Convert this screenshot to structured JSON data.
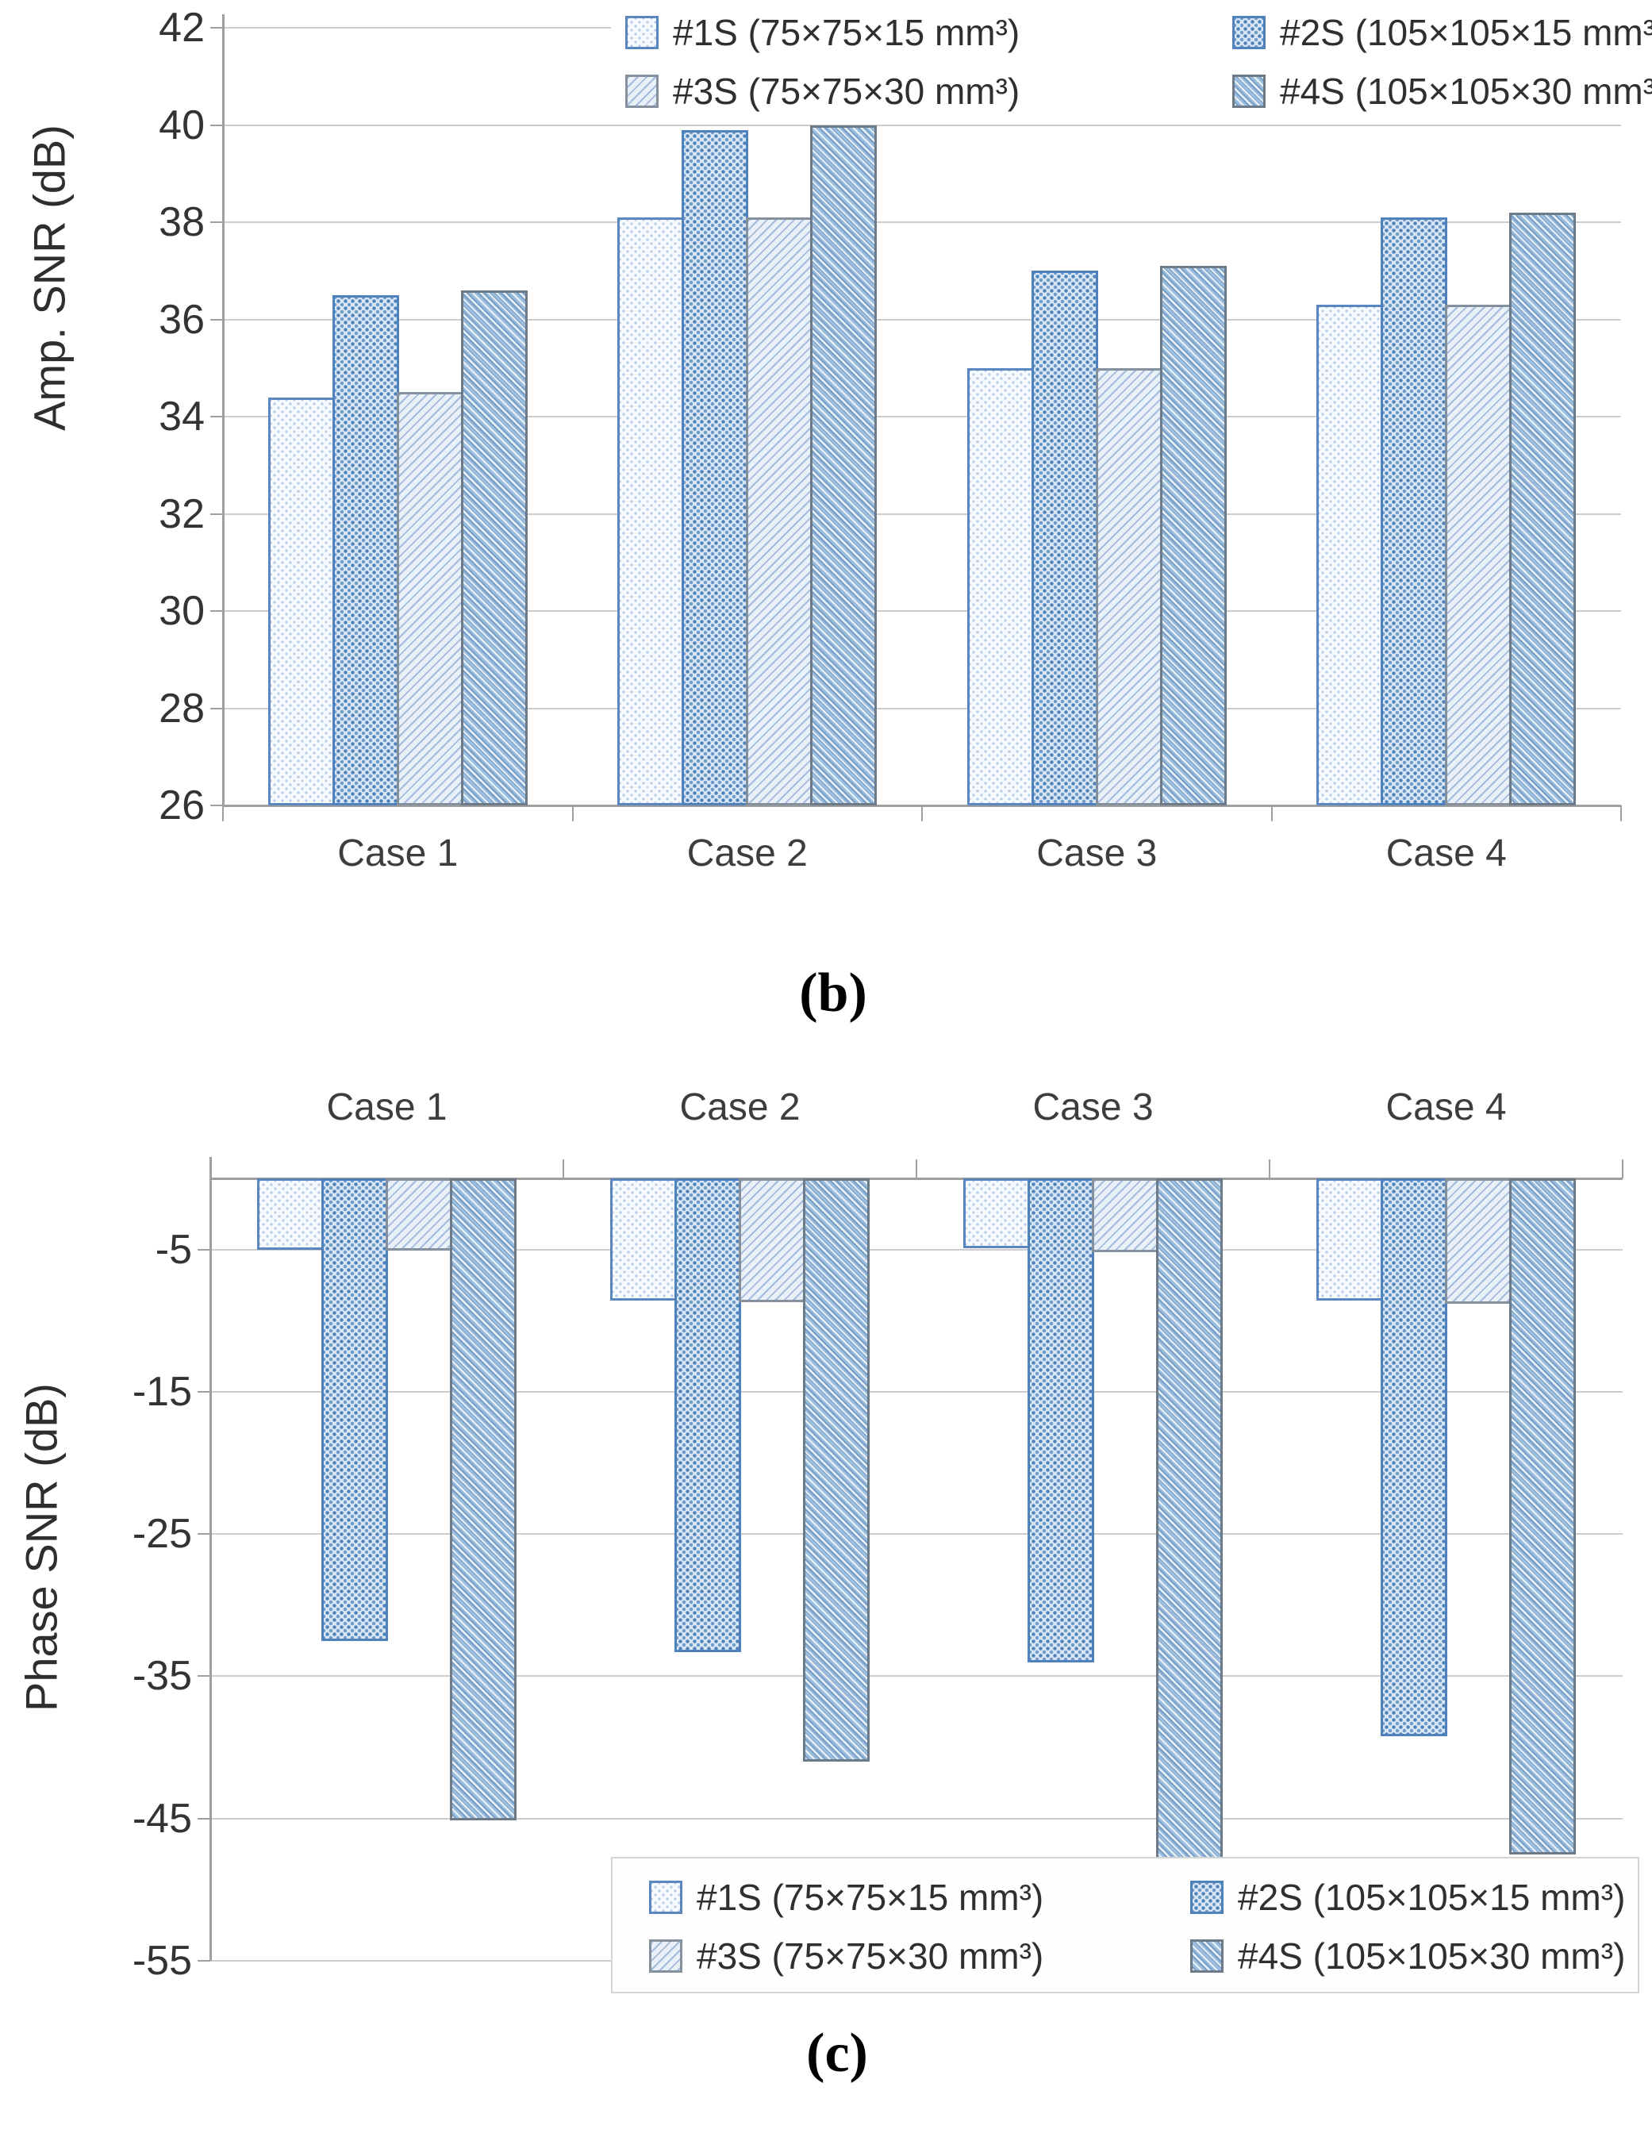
{
  "figure": {
    "panel_b_label": "(b)",
    "panel_c_label": "(c)"
  },
  "legend": {
    "items": [
      {
        "id": "s1",
        "label": "#1S (75×75×15 mm³)",
        "pattern": "dots-light"
      },
      {
        "id": "s2",
        "label": "#2S (105×105×15 mm³)",
        "pattern": "dots-dense"
      },
      {
        "id": "s3",
        "label": "#3S (75×75×30 mm³)",
        "pattern": "hatch-light"
      },
      {
        "id": "s4",
        "label": "#4S (105×105×30 mm³)",
        "pattern": "hatch-dense"
      }
    ]
  },
  "colors": {
    "accent_blue": "#4f81bd",
    "grid": "#cdcdcd",
    "axis": "#9f9f9f",
    "text": "#333333"
  },
  "chart_data": [
    {
      "id": "b",
      "type": "bar",
      "title": "",
      "xlabel": "",
      "ylabel": "Amp. SNR (dB)",
      "categories": [
        "Case 1",
        "Case 2",
        "Case 3",
        "Case 4"
      ],
      "series": [
        {
          "name": "#1S (75×75×15 mm³)",
          "values": [
            34.4,
            38.1,
            35.0,
            36.3
          ]
        },
        {
          "name": "#2S (105×105×15 mm³)",
          "values": [
            36.5,
            39.9,
            37.0,
            38.1
          ]
        },
        {
          "name": "#3S (75×75×30 mm³)",
          "values": [
            34.5,
            38.1,
            35.0,
            36.3
          ]
        },
        {
          "name": "#4S (105×105×30 mm³)",
          "values": [
            36.6,
            40.0,
            37.1,
            38.2
          ]
        }
      ],
      "ylim": [
        26,
        42
      ],
      "yticks": [
        26,
        28,
        30,
        32,
        34,
        36,
        38,
        40,
        42
      ],
      "grid": true,
      "legend_position": "top-right"
    },
    {
      "id": "c",
      "type": "bar",
      "title": "",
      "xlabel": "",
      "ylabel": "Phase SNR (dB)",
      "categories": [
        "Case 1",
        "Case 2",
        "Case 3",
        "Case 4"
      ],
      "series": [
        {
          "name": "#1S (75×75×15 mm³)",
          "values": [
            -5.0,
            -8.6,
            -4.9,
            -8.6
          ]
        },
        {
          "name": "#2S (105×105×15 mm³)",
          "values": [
            -32.5,
            -33.3,
            -34.0,
            -39.2
          ]
        },
        {
          "name": "#3S (75×75×30 mm³)",
          "values": [
            -5.1,
            -8.7,
            -5.2,
            -8.8
          ]
        },
        {
          "name": "#4S (105×105×30 mm³)",
          "values": [
            -45.1,
            -41.0,
            -48.3,
            -47.5
          ]
        }
      ],
      "ylim": [
        -55,
        0
      ],
      "yticks": [
        -5,
        -15,
        -25,
        -35,
        -45,
        -55
      ],
      "grid": true,
      "legend_position": "bottom-right-box"
    }
  ]
}
